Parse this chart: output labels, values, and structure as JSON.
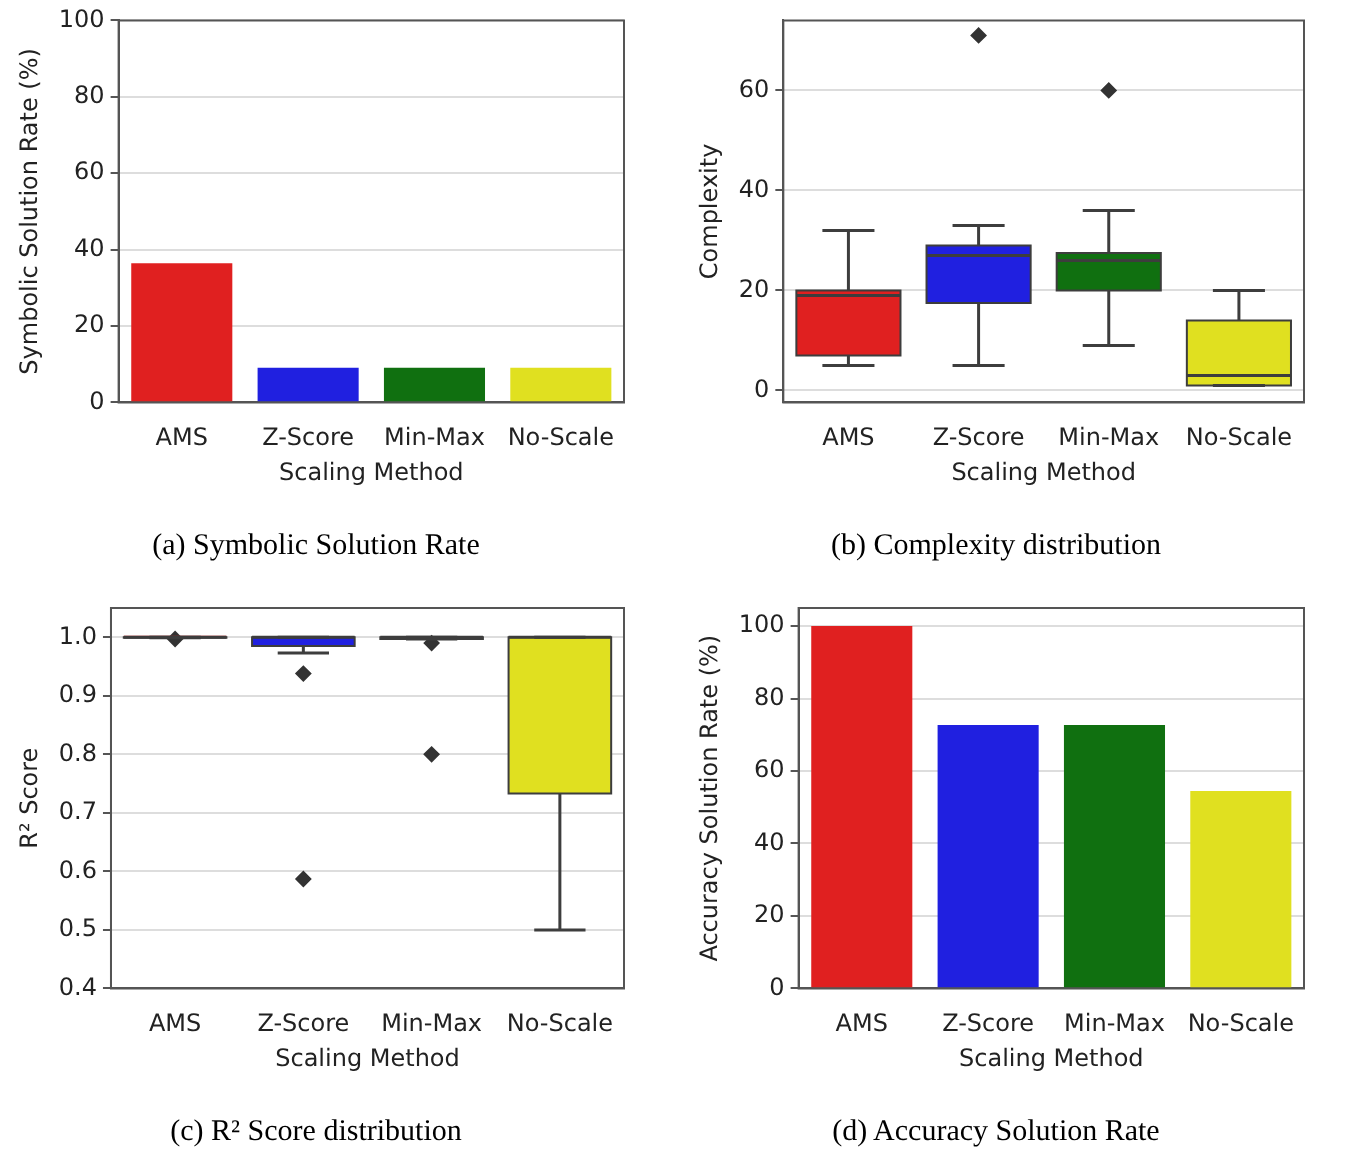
{
  "chart_data": [
    {
      "type": "bar",
      "title": "(a) Symbolic Solution Rate",
      "xlabel": "Scaling Method",
      "ylabel": "Symbolic Solution Rate (%)",
      "categories": [
        "AMS",
        "Z-Score",
        "Min-Max",
        "No-Scale"
      ],
      "values": [
        36.4,
        9.1,
        9.1,
        9.1
      ],
      "colors": [
        "#e02020",
        "#2020e0",
        "#107010",
        "#e0e020"
      ],
      "ylim": [
        0,
        100
      ],
      "yticks": [
        0,
        20,
        40,
        60,
        80,
        100
      ],
      "grid": "y",
      "legend": false
    },
    {
      "type": "box",
      "title": "(b) Complexity distribution",
      "xlabel": "Scaling Method",
      "ylabel": "Complexity",
      "categories": [
        "AMS",
        "Z-Score",
        "Min-Max",
        "No-Scale"
      ],
      "colors": [
        "#e02020",
        "#2020e0",
        "#107010",
        "#e0e020"
      ],
      "boxes": [
        {
          "low": 5,
          "q1": 7,
          "median": 19,
          "q3": 20,
          "high": 32
        },
        {
          "low": 5,
          "q1": 17.5,
          "median": 27,
          "q3": 29,
          "high": 33,
          "outliers": [
            71
          ]
        },
        {
          "low": 9,
          "q1": 20,
          "median": 26,
          "q3": 27.5,
          "high": 36,
          "outliers": [
            60
          ]
        },
        {
          "low": 1,
          "q1": 1,
          "median": 3,
          "q3": 14,
          "high": 20
        }
      ],
      "ylim": [
        -2.4,
        74
      ],
      "yticks": [
        0,
        20,
        40,
        60
      ],
      "grid": "y",
      "legend": false,
      "marker": "diamond"
    },
    {
      "type": "box",
      "title": "(c) R² Score distribution",
      "xlabel": "Scaling Method",
      "ylabel": "R² Score",
      "categories": [
        "AMS",
        "Z-Score",
        "Min-Max",
        "No-Scale"
      ],
      "colors": [
        "#e02020",
        "#2020e0",
        "#107010",
        "#e0e020"
      ],
      "boxes": [
        {
          "low": 0.999,
          "q1": 0.999,
          "median": 1.0,
          "q3": 1.0,
          "high": 1.0,
          "outliers": [
            0.997
          ]
        },
        {
          "low": 0.973,
          "q1": 0.985,
          "median": 1.0,
          "q3": 1.0,
          "high": 1.0,
          "outliers": [
            0.938,
            0.587
          ]
        },
        {
          "low": 0.997,
          "q1": 0.997,
          "median": 1.0,
          "q3": 1.0,
          "high": 1.0,
          "outliers": [
            0.99,
            0.8
          ]
        },
        {
          "low": 0.5,
          "q1": 0.733,
          "median": 1.0,
          "q3": 1.0,
          "high": 1.0
        }
      ],
      "ylim": [
        0.4,
        1.05
      ],
      "yticks": [
        {
          "value": 0.4,
          "label": "0.4"
        },
        {
          "value": 0.5,
          "label": "0.5"
        },
        {
          "value": 0.6,
          "label": "0.6"
        },
        {
          "value": 0.7,
          "label": "0.7"
        },
        {
          "value": 0.8,
          "label": "0.8"
        },
        {
          "value": 0.9,
          "label": "0.9"
        },
        {
          "value": 1.0,
          "label": "1.0"
        }
      ],
      "grid": "y",
      "legend": false,
      "marker": "diamond"
    },
    {
      "type": "bar",
      "title": "(d) Accuracy Solution Rate",
      "xlabel": "Scaling Method",
      "ylabel": "Accuracy Solution Rate (%)",
      "categories": [
        "AMS",
        "Z-Score",
        "Min-Max",
        "No-Scale"
      ],
      "values": [
        100,
        72.7,
        72.7,
        54.5
      ],
      "colors": [
        "#e02020",
        "#2020e0",
        "#107010",
        "#e0e020"
      ],
      "ylim": [
        0,
        105
      ],
      "yticks": [
        0,
        20,
        40,
        60,
        80,
        100
      ],
      "grid": "y",
      "legend": false
    }
  ]
}
